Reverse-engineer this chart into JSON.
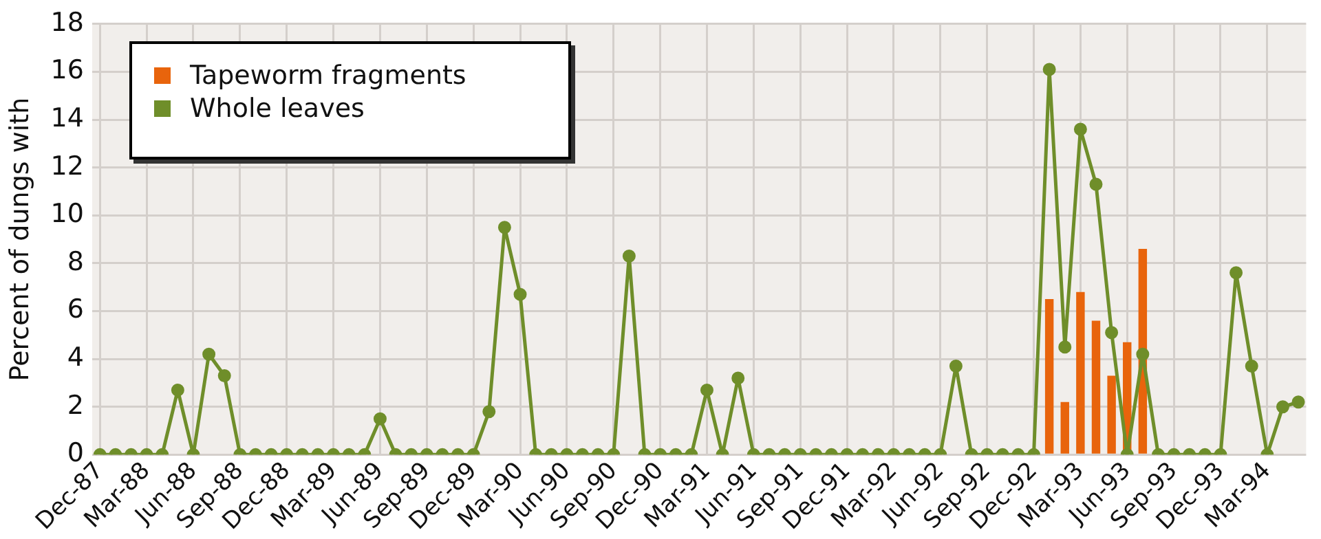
{
  "chart_data": {
    "type": "bar",
    "ylabel": "Percent of dungs with",
    "categories": [
      "Dec-87",
      null,
      null,
      "Mar-88",
      null,
      null,
      "Jun-88",
      null,
      null,
      "Sep-88",
      null,
      null,
      "Dec-88",
      null,
      null,
      "Mar-89",
      null,
      null,
      "Jun-89",
      null,
      null,
      "Sep-89",
      null,
      null,
      "Dec-89",
      null,
      null,
      "Mar-90",
      null,
      null,
      "Jun-90",
      null,
      null,
      "Sep-90",
      null,
      null,
      "Dec-90",
      null,
      null,
      "Mar-91",
      null,
      null,
      "Jun-91",
      null,
      null,
      "Sep-91",
      null,
      null,
      "Dec-91",
      null,
      null,
      "Mar-92",
      null,
      null,
      "Jun-92",
      null,
      null,
      "Sep-92",
      null,
      null,
      "Dec-92",
      null,
      null,
      "Mar-93",
      null,
      null,
      "Jun-93",
      null,
      null,
      "Sep-93",
      null,
      null,
      "Dec-93",
      null,
      null,
      "Mar-94",
      null,
      null
    ],
    "series": [
      {
        "name": "Tapeworm fragments",
        "color": "#e8640c",
        "values": [
          null,
          null,
          null,
          null,
          null,
          null,
          null,
          null,
          null,
          null,
          null,
          null,
          null,
          null,
          null,
          null,
          null,
          null,
          null,
          null,
          null,
          null,
          null,
          null,
          null,
          null,
          null,
          null,
          null,
          null,
          null,
          null,
          null,
          null,
          null,
          null,
          null,
          null,
          null,
          null,
          null,
          null,
          null,
          null,
          null,
          null,
          null,
          null,
          null,
          null,
          null,
          null,
          null,
          null,
          null,
          null,
          null,
          null,
          null,
          null,
          null,
          6.5,
          2.2,
          6.8,
          5.6,
          3.3,
          4.7,
          8.6,
          null,
          null,
          null,
          null,
          null,
          null,
          null,
          null,
          null,
          null
        ]
      },
      {
        "name": "Whole leaves",
        "type": "line",
        "color": "#6f8e2a",
        "values": [
          0,
          0,
          0,
          0,
          0,
          2.7,
          0,
          4.2,
          3.3,
          0,
          0,
          0,
          0,
          0,
          0,
          0,
          0,
          0,
          1.5,
          0,
          0,
          0,
          0,
          0,
          0,
          1.8,
          9.5,
          6.7,
          0,
          0,
          0,
          0,
          0,
          0,
          8.3,
          0,
          0,
          0,
          0,
          2.7,
          0,
          3.2,
          0,
          0,
          0,
          0,
          0,
          0,
          0,
          0,
          0,
          0,
          0,
          0,
          0,
          3.7,
          0,
          0,
          0,
          0,
          0,
          16.1,
          4.5,
          13.6,
          11.3,
          5.1,
          0,
          4.2,
          0,
          0,
          0,
          0,
          0,
          7.6,
          3.7,
          0,
          2.0,
          2.2
        ]
      }
    ],
    "ylim": [
      0,
      18
    ],
    "yticks": [
      0,
      2,
      4,
      6,
      8,
      10,
      12,
      14,
      16,
      18
    ],
    "grid": true,
    "legend": "top left",
    "marker": "circle",
    "line_style": "solid"
  }
}
